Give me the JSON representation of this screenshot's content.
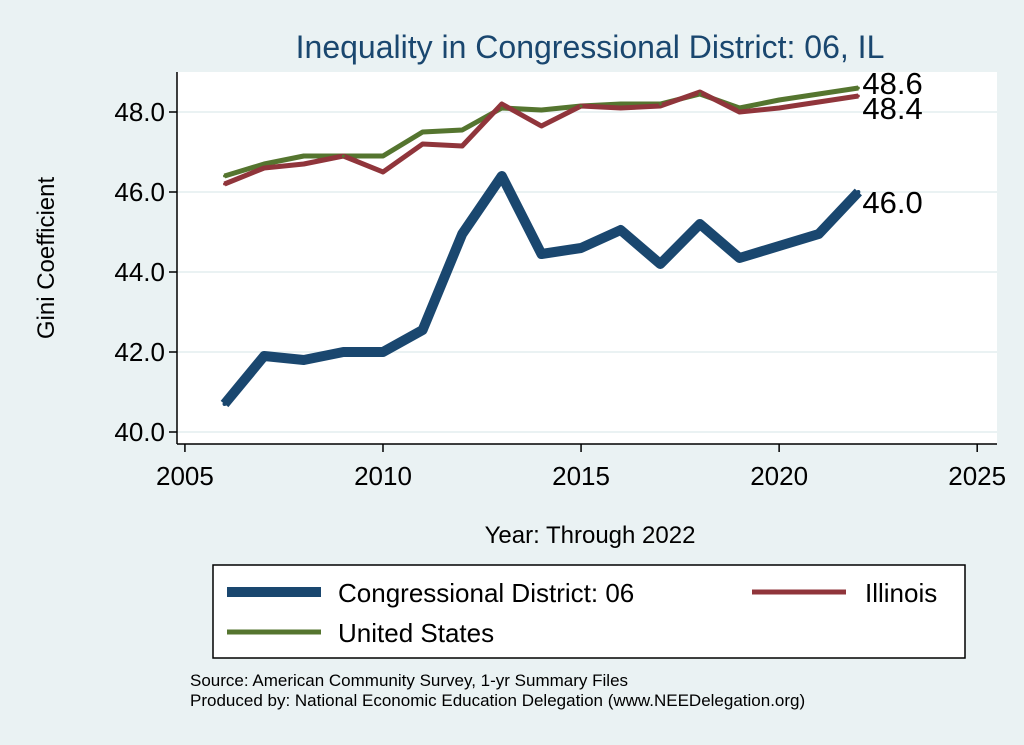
{
  "chart_data": {
    "type": "line",
    "title": "Inequality in Congressional District:  06, IL",
    "xlabel": "Year: Through 2022",
    "ylabel": "Gini Coefficient",
    "xlim": [
      2004.8,
      2025.5
    ],
    "ylim": [
      39.7,
      49.0
    ],
    "xticks": [
      2005,
      2010,
      2015,
      2020,
      2025
    ],
    "xtick_labels": [
      "2005",
      "2010",
      "2015",
      "2020",
      "2025"
    ],
    "yticks": [
      40,
      42,
      44,
      46,
      48
    ],
    "ytick_labels": [
      "40.0",
      "42.0",
      "44.0",
      "46.0",
      "48.0"
    ],
    "grid": true,
    "x": [
      2006,
      2007,
      2008,
      2009,
      2010,
      2011,
      2012,
      2013,
      2014,
      2015,
      2016,
      2017,
      2018,
      2019,
      2020,
      2021,
      2022
    ],
    "series": [
      {
        "name": "Congressional District:  06",
        "color": "#1a476f",
        "values": [
          40.7,
          41.9,
          41.8,
          42.0,
          42.0,
          42.55,
          44.95,
          46.4,
          44.45,
          44.6,
          45.05,
          44.2,
          45.2,
          44.35,
          44.65,
          44.95,
          46.0
        ],
        "end_label": "46.0"
      },
      {
        "name": "Illinois",
        "color": "#90353b",
        "values": [
          46.2,
          46.6,
          46.7,
          46.9,
          46.5,
          47.2,
          47.15,
          48.2,
          47.65,
          48.15,
          48.1,
          48.15,
          48.5,
          48.0,
          48.1,
          48.25,
          48.4
        ],
        "end_label": "48.4"
      },
      {
        "name": "United States",
        "color": "#55752f",
        "values": [
          46.4,
          46.7,
          46.9,
          46.9,
          46.9,
          47.5,
          47.55,
          48.1,
          48.05,
          48.15,
          48.2,
          48.2,
          48.45,
          48.1,
          48.3,
          48.45,
          48.6
        ],
        "end_label": "48.6"
      }
    ],
    "legend": {
      "position": "bottom",
      "entries": [
        "Congressional District:  06",
        "Illinois",
        "United States"
      ]
    },
    "notes": [
      "Source: American Community Survey, 1-yr Summary Files",
      "Produced by: National Economic Education Delegation (www.NEEDelegation.org)"
    ]
  }
}
